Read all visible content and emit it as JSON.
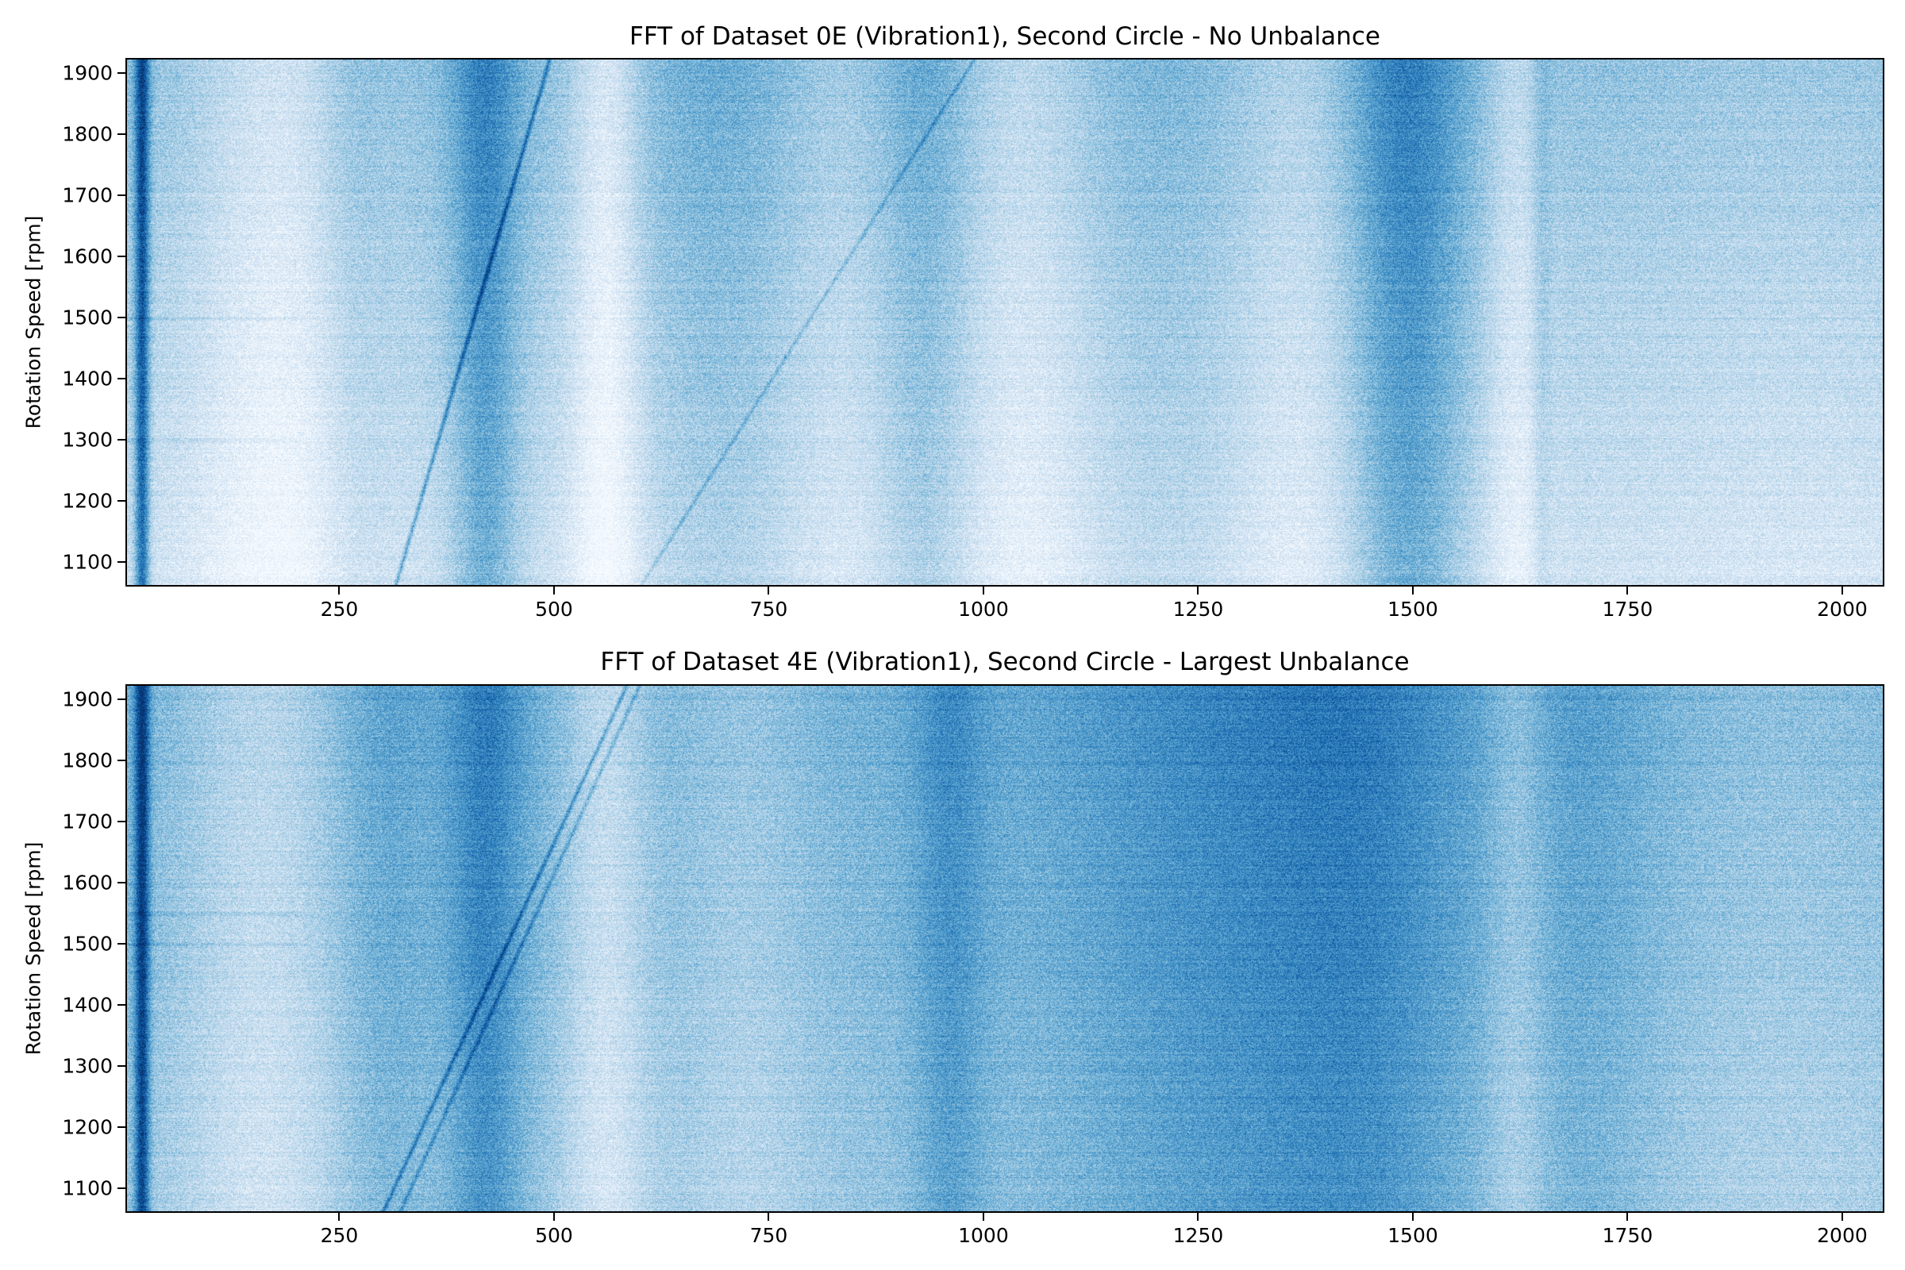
{
  "chart_data": [
    {
      "type": "heatmap",
      "title": "FFT of Dataset 0E (Vibration1), Second Circle - No Unbalance",
      "xlabel": "",
      "ylabel": "Rotation Speed [rpm]",
      "xlim": [
        1,
        2049
      ],
      "ylim": [
        1060,
        1925
      ],
      "x_ticks": [
        250,
        500,
        750,
        1000,
        1250,
        1500,
        1750,
        2000
      ],
      "y_ticks": [
        1100,
        1200,
        1300,
        1400,
        1500,
        1600,
        1700,
        1800,
        1900
      ],
      "colormap": "Blues",
      "colormap_stops": [
        "#f7fbff",
        "#deebf7",
        "#c6dbef",
        "#9ecae1",
        "#6baed6",
        "#4292c6",
        "#2171b5",
        "#08519c",
        "#08306b"
      ],
      "grid": false,
      "legend": "none",
      "features": {
        "base_level": 0.42,
        "bands": [
          {
            "center": 20,
            "width": 6,
            "intensity": 0.55
          },
          {
            "center": 262,
            "width": 30,
            "intensity": 0.08
          },
          {
            "center": 420,
            "width": 28,
            "intensity": 0.28
          },
          {
            "center": 560,
            "width": 28,
            "intensity": -0.26
          },
          {
            "center": 180,
            "width": 70,
            "intensity": -0.22
          },
          {
            "center": 700,
            "width": 70,
            "intensity": 0.1
          },
          {
            "center": 830,
            "width": 60,
            "intensity": -0.08
          },
          {
            "center": 930,
            "width": 40,
            "intensity": 0.14
          },
          {
            "center": 1050,
            "width": 60,
            "intensity": -0.15
          },
          {
            "center": 1200,
            "width": 90,
            "intensity": 0.05
          },
          {
            "center": 1370,
            "width": 60,
            "intensity": -0.12
          },
          {
            "center": 1490,
            "width": 50,
            "intensity": 0.3
          },
          {
            "center": 1620,
            "width": 25,
            "intensity": -0.15
          },
          {
            "center": 1650,
            "width": 8,
            "intensity": 0.1
          },
          {
            "center": 1950,
            "width": 140,
            "intensity": -0.05
          }
        ],
        "low_rpm_fade": 0.22,
        "harmonic_lines": [
          {
            "x_at_1060": 315,
            "x_at_1925": 495,
            "intensity": 0.35
          },
          {
            "x_at_1060": 600,
            "x_at_1925": 990,
            "intensity": 0.18
          }
        ],
        "horizontal_streaks_rpm": [
          1300,
          1500
        ]
      }
    },
    {
      "type": "heatmap",
      "title": "FFT of Dataset 4E (Vibration1), Second Circle - Largest Unbalance",
      "xlabel": "",
      "ylabel": "Rotation Speed [rpm]",
      "xlim": [
        1,
        2049
      ],
      "ylim": [
        1060,
        1925
      ],
      "x_ticks": [
        250,
        500,
        750,
        1000,
        1250,
        1500,
        1750,
        2000
      ],
      "y_ticks": [
        1100,
        1200,
        1300,
        1400,
        1500,
        1600,
        1700,
        1800,
        1900
      ],
      "colormap": "Blues",
      "colormap_stops": [
        "#f7fbff",
        "#deebf7",
        "#c6dbef",
        "#9ecae1",
        "#6baed6",
        "#4292c6",
        "#2171b5",
        "#08519c",
        "#08306b"
      ],
      "grid": false,
      "legend": "none",
      "features": {
        "base_level": 0.5,
        "bands": [
          {
            "center": 20,
            "width": 6,
            "intensity": 0.55
          },
          {
            "center": 300,
            "width": 40,
            "intensity": 0.08
          },
          {
            "center": 420,
            "width": 30,
            "intensity": 0.22
          },
          {
            "center": 560,
            "width": 35,
            "intensity": -0.22
          },
          {
            "center": 160,
            "width": 70,
            "intensity": -0.2
          },
          {
            "center": 720,
            "width": 60,
            "intensity": -0.1
          },
          {
            "center": 960,
            "width": 30,
            "intensity": 0.15
          },
          {
            "center": 1300,
            "width": 150,
            "intensity": 0.18
          },
          {
            "center": 1450,
            "width": 80,
            "intensity": 0.12
          },
          {
            "center": 1620,
            "width": 25,
            "intensity": -0.12
          },
          {
            "center": 1700,
            "width": 60,
            "intensity": 0.08
          },
          {
            "center": 1950,
            "width": 120,
            "intensity": -0.08
          }
        ],
        "low_rpm_fade": 0.12,
        "harmonic_lines": [
          {
            "x_at_1060": 300,
            "x_at_1925": 585,
            "intensity": 0.3
          },
          {
            "x_at_1060": 320,
            "x_at_1925": 600,
            "intensity": 0.22
          }
        ],
        "horizontal_streaks_rpm": [
          1500,
          1550
        ]
      }
    }
  ]
}
